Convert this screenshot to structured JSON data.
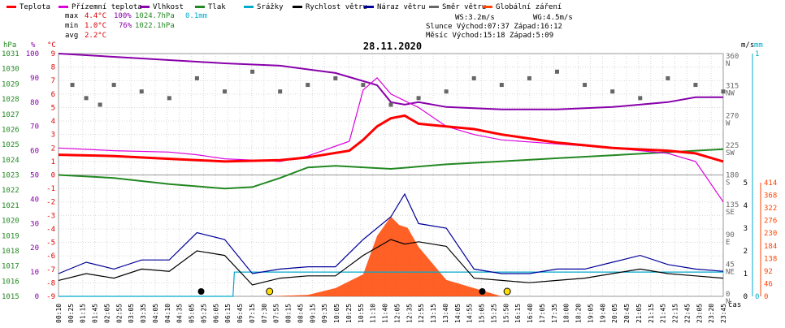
{
  "date": "28.11.2020",
  "legend": [
    {
      "label": "Teplota",
      "color": "#ff0000"
    },
    {
      "label": "Přízemní teplota",
      "color": "#dd00dd"
    },
    {
      "label": "Vlhkost",
      "color": "#8800aa"
    },
    {
      "label": "Tlak",
      "color": "#228822"
    },
    {
      "label": "Srážky",
      "color": "#00aacc"
    },
    {
      "label": "Rychlost větru",
      "color": "#000000"
    },
    {
      "label": "Náraz větru",
      "color": "#000099"
    },
    {
      "label": "Směr větru",
      "color": "#666666"
    },
    {
      "label": "Globální záření",
      "color": "#ff4400"
    }
  ],
  "stats": {
    "max": {
      "label": "max",
      "temp": "4.4°C",
      "hum": "100%",
      "press": "1024.7hPa",
      "rain": "0.1mm"
    },
    "min": {
      "label": "min",
      "temp": "1.0°C",
      "hum": "76%",
      "press": "1022.1hPa"
    },
    "avg": {
      "label": "avg",
      "temp": "2.2°C"
    }
  },
  "wind_info": {
    "ws": "WS:3.2m/s",
    "wg": "WG:4.5m/s"
  },
  "sun_info": {
    "line": "Slunce Východ:07:37  Západ:16:12"
  },
  "moon_info": {
    "line": "Měsíc  Východ:15:18  Západ:5:09"
  },
  "axis_units": {
    "hpa": "hPa",
    "pct": "%",
    "degc": "°C",
    "ms": "m/s",
    "mm": "mm",
    "xlabel": "čas"
  },
  "chart_data": {
    "type": "line",
    "title": "28.11.2020",
    "x_unit": "time of day",
    "axes": {
      "pressure_hPa": {
        "min": 1015,
        "max": 1031,
        "ticks": [
          1015,
          1016,
          1017,
          1018,
          1019,
          1020,
          1021,
          1022,
          1023,
          1024,
          1025,
          1026,
          1027,
          1028,
          1029,
          1030,
          1031
        ]
      },
      "humidity_pct": {
        "min": 0,
        "max": 100,
        "ticks": [
          0,
          10,
          20,
          30,
          40,
          50,
          60,
          70,
          80,
          90,
          100
        ]
      },
      "temperature_c": {
        "min": -9,
        "max": 9,
        "ticks": [
          9,
          8,
          7,
          6,
          5,
          4,
          3,
          2,
          1,
          0,
          -1,
          -2,
          -3,
          -4,
          -5,
          -6,
          -7,
          -8,
          -9
        ]
      },
      "wind_dir_deg": {
        "ticks": [
          {
            "v": 360,
            "l": "N"
          },
          {
            "v": 315,
            "l": "NW"
          },
          {
            "v": 270,
            "l": "W"
          },
          {
            "v": 225,
            "l": "SW"
          },
          {
            "v": 180,
            "l": "S"
          },
          {
            "v": 135,
            "l": "SE"
          },
          {
            "v": 90,
            "l": "E"
          },
          {
            "v": 45,
            "l": "NE"
          },
          {
            "v": 0,
            "l": "N"
          }
        ]
      },
      "wind_speed_ms": {
        "min": 0,
        "max": 5,
        "ticks": [
          0,
          1,
          2,
          3,
          4,
          5
        ]
      },
      "rain_mm": {
        "min": 0,
        "max": 1,
        "ticks": [
          0,
          1
        ]
      },
      "radiation": {
        "min": 0,
        "max": 414,
        "ticks": [
          0,
          46,
          92,
          138,
          184,
          230,
          276,
          322,
          368,
          414
        ]
      }
    },
    "time_ticks": [
      "00:10",
      "00:25",
      "01:15",
      "01:45",
      "02:05",
      "02:55",
      "03:05",
      "03:35",
      "04:05",
      "04:10",
      "04:35",
      "05:05",
      "05:25",
      "06:05",
      "06:15",
      "06:45",
      "07:15",
      "07:30",
      "07:55",
      "08:15",
      "08:45",
      "09:15",
      "09:35",
      "10:05",
      "10:25",
      "10:55",
      "11:10",
      "11:40",
      "12:05",
      "12:35",
      "12:55",
      "13:15",
      "13:40",
      "14:05",
      "14:55",
      "15:05",
      "15:25",
      "15:50",
      "16:15",
      "16:40",
      "17:05",
      "17:35",
      "18:00",
      "18:20",
      "19:05",
      "19:40",
      "20:05",
      "20:45",
      "21:05",
      "21:15",
      "21:45",
      "22:15",
      "22:45",
      "23:05",
      "23:20",
      "23:45"
    ],
    "series": [
      {
        "name": "Teplota",
        "unit": "°C",
        "color": "#ff0000",
        "points": [
          [
            0,
            1.5
          ],
          [
            2,
            1.4
          ],
          [
            4,
            1.2
          ],
          [
            5,
            1.1
          ],
          [
            6,
            1.0
          ],
          [
            8,
            1.1
          ],
          [
            9,
            1.3
          ],
          [
            10.5,
            1.8
          ],
          [
            11,
            2.6
          ],
          [
            11.5,
            3.6
          ],
          [
            12,
            4.2
          ],
          [
            12.5,
            4.4
          ],
          [
            13,
            3.8
          ],
          [
            14,
            3.6
          ],
          [
            15,
            3.4
          ],
          [
            16,
            3.0
          ],
          [
            18,
            2.4
          ],
          [
            20,
            2.0
          ],
          [
            22,
            1.8
          ],
          [
            23,
            1.6
          ],
          [
            23.5,
            1.3
          ],
          [
            24,
            1.0
          ]
        ]
      },
      {
        "name": "Přízemní teplota",
        "unit": "°C",
        "color": "#dd00dd",
        "points": [
          [
            0,
            2.0
          ],
          [
            2,
            1.8
          ],
          [
            4,
            1.7
          ],
          [
            5,
            1.5
          ],
          [
            6,
            1.2
          ],
          [
            7,
            1.1
          ],
          [
            8,
            1.0
          ],
          [
            9,
            1.4
          ],
          [
            10.5,
            2.5
          ],
          [
            11,
            6.3
          ],
          [
            11.5,
            7.2
          ],
          [
            12,
            6.0
          ],
          [
            12.5,
            5.5
          ],
          [
            13,
            5.0
          ],
          [
            14,
            3.6
          ],
          [
            15,
            3.0
          ],
          [
            16,
            2.6
          ],
          [
            18,
            2.3
          ],
          [
            20,
            2.0
          ],
          [
            22,
            1.6
          ],
          [
            23,
            1.0
          ],
          [
            23.5,
            -0.5
          ],
          [
            24,
            -2.0
          ]
        ]
      },
      {
        "name": "Vlhkost",
        "unit": "%",
        "color": "#8800aa",
        "points": [
          [
            0,
            100
          ],
          [
            3,
            98
          ],
          [
            6,
            96
          ],
          [
            8,
            95
          ],
          [
            10,
            92
          ],
          [
            11.5,
            87
          ],
          [
            12,
            80
          ],
          [
            12.5,
            79
          ],
          [
            13,
            80
          ],
          [
            14,
            78
          ],
          [
            16,
            77
          ],
          [
            18,
            77
          ],
          [
            20,
            78
          ],
          [
            22,
            80
          ],
          [
            23,
            82
          ],
          [
            24,
            82
          ]
        ]
      },
      {
        "name": "Tlak",
        "unit": "hPa",
        "color": "#228822",
        "points": [
          [
            0,
            1023.0
          ],
          [
            2,
            1022.8
          ],
          [
            4,
            1022.4
          ],
          [
            6,
            1022.1
          ],
          [
            7,
            1022.2
          ],
          [
            8,
            1022.8
          ],
          [
            9,
            1023.5
          ],
          [
            10,
            1023.6
          ],
          [
            12,
            1023.4
          ],
          [
            14,
            1023.7
          ],
          [
            16,
            1023.9
          ],
          [
            18,
            1024.1
          ],
          [
            20,
            1024.3
          ],
          [
            22,
            1024.5
          ],
          [
            24,
            1024.7
          ]
        ]
      },
      {
        "name": "Srážky",
        "unit": "mm",
        "color": "#00aacc",
        "points": [
          [
            0,
            0.0
          ],
          [
            6.3,
            0.0
          ],
          [
            6.35,
            0.1
          ],
          [
            24,
            0.1
          ]
        ]
      },
      {
        "name": "Globální záření",
        "unit": "W/m²",
        "color": "#ff4400",
        "points": [
          [
            7.5,
            0
          ],
          [
            9,
            5
          ],
          [
            10,
            30
          ],
          [
            11,
            80
          ],
          [
            11.5,
            220
          ],
          [
            12,
            290
          ],
          [
            12.3,
            260
          ],
          [
            12.6,
            250
          ],
          [
            13,
            180
          ],
          [
            14,
            60
          ],
          [
            15,
            30
          ],
          [
            16,
            0
          ]
        ]
      },
      {
        "name": "Rychlost větru",
        "unit": "m/s",
        "color": "#000000",
        "points": [
          [
            0,
            0.7
          ],
          [
            1,
            1.0
          ],
          [
            2,
            0.8
          ],
          [
            3,
            1.2
          ],
          [
            4,
            1.1
          ],
          [
            5,
            2.0
          ],
          [
            6,
            1.8
          ],
          [
            7,
            0.5
          ],
          [
            8,
            0.8
          ],
          [
            9,
            0.9
          ],
          [
            10,
            0.9
          ],
          [
            11,
            1.8
          ],
          [
            12,
            2.5
          ],
          [
            12.5,
            2.3
          ],
          [
            13,
            2.4
          ],
          [
            14,
            2.2
          ],
          [
            15,
            0.8
          ],
          [
            16,
            0.7
          ],
          [
            17,
            0.6
          ],
          [
            18,
            0.7
          ],
          [
            19,
            0.8
          ],
          [
            20,
            1.0
          ],
          [
            21,
            1.2
          ],
          [
            22,
            1.0
          ],
          [
            23,
            0.9
          ],
          [
            24,
            0.8
          ]
        ]
      },
      {
        "name": "Náraz větru",
        "unit": "m/s",
        "color": "#000099",
        "points": [
          [
            0,
            1.0
          ],
          [
            1,
            1.5
          ],
          [
            2,
            1.2
          ],
          [
            3,
            1.6
          ],
          [
            4,
            1.6
          ],
          [
            5,
            2.8
          ],
          [
            6,
            2.5
          ],
          [
            7,
            1.0
          ],
          [
            8,
            1.2
          ],
          [
            9,
            1.3
          ],
          [
            10,
            1.3
          ],
          [
            11,
            2.5
          ],
          [
            12,
            3.5
          ],
          [
            12.5,
            4.5
          ],
          [
            13,
            3.2
          ],
          [
            14,
            3.0
          ],
          [
            15,
            1.2
          ],
          [
            16,
            1.0
          ],
          [
            17,
            1.0
          ],
          [
            18,
            1.2
          ],
          [
            19,
            1.2
          ],
          [
            20,
            1.5
          ],
          [
            21,
            1.8
          ],
          [
            22,
            1.4
          ],
          [
            23,
            1.2
          ],
          [
            24,
            1.1
          ]
        ]
      },
      {
        "name": "Směr větru",
        "unit": "°",
        "color": "#666666",
        "style": "points",
        "points": [
          [
            0.5,
            320
          ],
          [
            1,
            300
          ],
          [
            1.5,
            290
          ],
          [
            2,
            320
          ],
          [
            3,
            310
          ],
          [
            4,
            300
          ],
          [
            5,
            330
          ],
          [
            6,
            310
          ],
          [
            7,
            340
          ],
          [
            8,
            310
          ],
          [
            9,
            320
          ],
          [
            10,
            330
          ],
          [
            11,
            320
          ],
          [
            12,
            290
          ],
          [
            13,
            300
          ],
          [
            14,
            310
          ],
          [
            15,
            330
          ],
          [
            16,
            320
          ],
          [
            17,
            330
          ],
          [
            18,
            340
          ],
          [
            19,
            320
          ],
          [
            20,
            310
          ],
          [
            21,
            300
          ],
          [
            22,
            330
          ],
          [
            23,
            320
          ],
          [
            24,
            310
          ]
        ]
      }
    ],
    "sun_events": [
      {
        "type": "sunrise",
        "time": 7.62
      },
      {
        "type": "sunset",
        "time": 16.2
      }
    ],
    "moon_events": [
      {
        "type": "moonset",
        "time": 5.15
      },
      {
        "type": "moonrise",
        "time": 15.3
      }
    ]
  }
}
